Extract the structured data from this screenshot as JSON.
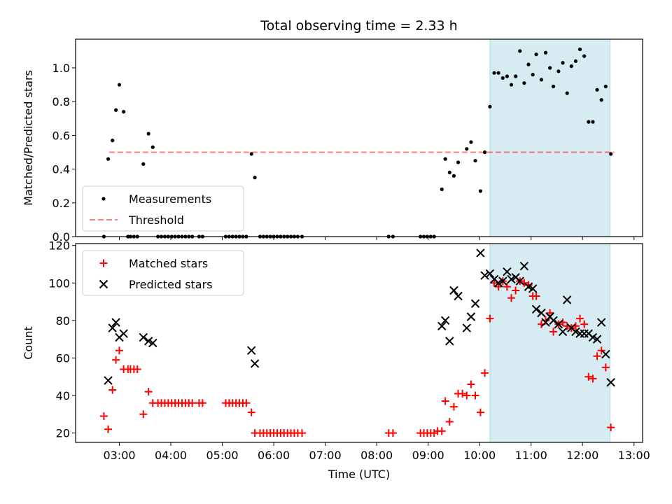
{
  "colors": {
    "band": "#add8e6",
    "threshold": "#ff0000",
    "matched": "#ff0000",
    "predicted": "#000000",
    "measurement": "#000000"
  },
  "chart_data": [
    {
      "type": "scatter",
      "title": "Total observing time = 2.33 h",
      "ylabel": "Matched/Predicted stars",
      "xlabel": "",
      "x_axis": "time",
      "xlim": [
        "02:09",
        "13:10"
      ],
      "ylim": [
        0,
        1.17
      ],
      "yticks": [
        0,
        0.2,
        0.4,
        0.6,
        0.8,
        1.0
      ],
      "ytick_labels": [
        "0.0",
        "0.2",
        "0.4",
        "0.6",
        "0.8",
        "1.0"
      ],
      "shaded_range": [
        "10:12",
        "12:32"
      ],
      "legend": {
        "position": "lower-left",
        "entries": [
          "Measurements",
          "Threshold"
        ]
      },
      "threshold": {
        "name": "Threshold",
        "y": 0.5,
        "x_range": [
          "02:48",
          "12:37"
        ],
        "style": "dashed"
      },
      "series": [
        {
          "name": "Measurements",
          "marker": "dot",
          "points": [
            [
              "02:42",
              0.0
            ],
            [
              "02:47",
              0.46
            ],
            [
              "02:52",
              0.57
            ],
            [
              "02:56",
              0.75
            ],
            [
              "03:00",
              0.9
            ],
            [
              "03:05",
              0.74
            ],
            [
              "03:10",
              0.0
            ],
            [
              "03:13",
              0.0
            ],
            [
              "03:17",
              0.0
            ],
            [
              "03:21",
              0.0
            ],
            [
              "03:28",
              0.43
            ],
            [
              "03:34",
              0.61
            ],
            [
              "03:39",
              0.53
            ],
            [
              "03:45",
              0.0
            ],
            [
              "03:49",
              0.0
            ],
            [
              "03:53",
              0.0
            ],
            [
              "03:57",
              0.0
            ],
            [
              "04:01",
              0.0
            ],
            [
              "04:05",
              0.0
            ],
            [
              "04:09",
              0.0
            ],
            [
              "04:13",
              0.0
            ],
            [
              "04:17",
              0.0
            ],
            [
              "04:21",
              0.0
            ],
            [
              "04:25",
              0.0
            ],
            [
              "04:33",
              0.0
            ],
            [
              "04:37",
              0.0
            ],
            [
              "05:04",
              0.0
            ],
            [
              "05:08",
              0.0
            ],
            [
              "05:12",
              0.0
            ],
            [
              "05:16",
              0.0
            ],
            [
              "05:20",
              0.0
            ],
            [
              "05:24",
              0.0
            ],
            [
              "05:28",
              0.0
            ],
            [
              "05:34",
              0.49
            ],
            [
              "05:38",
              0.35
            ],
            [
              "05:44",
              0.0
            ],
            [
              "05:48",
              0.0
            ],
            [
              "05:52",
              0.0
            ],
            [
              "05:56",
              0.0
            ],
            [
              "06:00",
              0.0
            ],
            [
              "06:04",
              0.0
            ],
            [
              "06:08",
              0.0
            ],
            [
              "06:12",
              0.0
            ],
            [
              "06:16",
              0.0
            ],
            [
              "06:20",
              0.0
            ],
            [
              "06:24",
              0.0
            ],
            [
              "06:28",
              0.0
            ],
            [
              "06:33",
              0.0
            ],
            [
              "08:14",
              0.0
            ],
            [
              "08:19",
              0.0
            ],
            [
              "08:51",
              0.0
            ],
            [
              "08:55",
              0.0
            ],
            [
              "08:59",
              0.0
            ],
            [
              "09:03",
              0.0
            ],
            [
              "09:07",
              0.0
            ],
            [
              "09:16",
              0.28
            ],
            [
              "09:20",
              0.46
            ],
            [
              "09:25",
              0.38
            ],
            [
              "09:30",
              0.36
            ],
            [
              "09:35",
              0.44
            ],
            [
              "09:45",
              0.52
            ],
            [
              "09:50",
              0.56
            ],
            [
              "09:55",
              0.45
            ],
            [
              "10:01",
              0.27
            ],
            [
              "10:06",
              0.5
            ],
            [
              "10:12",
              0.77
            ],
            [
              "10:17",
              0.97
            ],
            [
              "10:22",
              0.97
            ],
            [
              "10:27",
              0.94
            ],
            [
              "10:32",
              0.95
            ],
            [
              "10:37",
              0.9
            ],
            [
              "10:42",
              0.95
            ],
            [
              "10:47",
              1.1
            ],
            [
              "10:52",
              0.91
            ],
            [
              "10:57",
              1.02
            ],
            [
              "11:02",
              0.96
            ],
            [
              "11:06",
              1.08
            ],
            [
              "11:12",
              0.93
            ],
            [
              "11:17",
              1.09
            ],
            [
              "11:22",
              1.0
            ],
            [
              "11:26",
              0.89
            ],
            [
              "11:32",
              0.98
            ],
            [
              "11:37",
              1.03
            ],
            [
              "11:42",
              0.85
            ],
            [
              "11:47",
              1.01
            ],
            [
              "11:52",
              1.04
            ],
            [
              "11:57",
              1.11
            ],
            [
              "12:02",
              1.07
            ],
            [
              "12:07",
              0.68
            ],
            [
              "12:12",
              0.68
            ],
            [
              "12:17",
              0.87
            ],
            [
              "12:22",
              0.81
            ],
            [
              "12:27",
              0.89
            ],
            [
              "12:33",
              0.49
            ]
          ]
        }
      ]
    },
    {
      "type": "scatter",
      "title": "",
      "ylabel": "Count",
      "xlabel": "Time (UTC)",
      "x_axis": "time",
      "xlim": [
        "02:09",
        "13:10"
      ],
      "ylim": [
        15,
        121
      ],
      "yticks": [
        20,
        40,
        60,
        80,
        100,
        120
      ],
      "ytick_labels": [
        "20",
        "40",
        "60",
        "80",
        "100",
        "120"
      ],
      "xticks": [
        "03:00",
        "04:00",
        "05:00",
        "06:00",
        "07:00",
        "08:00",
        "09:00",
        "10:00",
        "11:00",
        "12:00",
        "13:00"
      ],
      "shaded_range": [
        "10:12",
        "12:32"
      ],
      "legend": {
        "position": "upper-left",
        "entries": [
          "Matched stars",
          "Predicted stars"
        ]
      },
      "series": [
        {
          "name": "Matched stars",
          "marker": "plus",
          "points": [
            [
              "02:42",
              29
            ],
            [
              "02:47",
              22
            ],
            [
              "02:52",
              43
            ],
            [
              "02:56",
              59
            ],
            [
              "03:00",
              64
            ],
            [
              "03:05",
              54
            ],
            [
              "03:10",
              54
            ],
            [
              "03:13",
              54
            ],
            [
              "03:17",
              54
            ],
            [
              "03:21",
              54
            ],
            [
              "03:28",
              30
            ],
            [
              "03:34",
              42
            ],
            [
              "03:39",
              36
            ],
            [
              "03:45",
              36
            ],
            [
              "03:49",
              36
            ],
            [
              "03:53",
              36
            ],
            [
              "03:57",
              36
            ],
            [
              "04:01",
              36
            ],
            [
              "04:05",
              36
            ],
            [
              "04:09",
              36
            ],
            [
              "04:13",
              36
            ],
            [
              "04:17",
              36
            ],
            [
              "04:21",
              36
            ],
            [
              "04:25",
              36
            ],
            [
              "04:33",
              36
            ],
            [
              "04:37",
              36
            ],
            [
              "05:04",
              36
            ],
            [
              "05:08",
              36
            ],
            [
              "05:12",
              36
            ],
            [
              "05:16",
              36
            ],
            [
              "05:20",
              36
            ],
            [
              "05:24",
              36
            ],
            [
              "05:28",
              36
            ],
            [
              "05:34",
              31
            ],
            [
              "05:38",
              20
            ],
            [
              "05:44",
              20
            ],
            [
              "05:48",
              20
            ],
            [
              "05:52",
              20
            ],
            [
              "05:56",
              20
            ],
            [
              "06:00",
              20
            ],
            [
              "06:04",
              20
            ],
            [
              "06:08",
              20
            ],
            [
              "06:12",
              20
            ],
            [
              "06:16",
              20
            ],
            [
              "06:20",
              20
            ],
            [
              "06:24",
              20
            ],
            [
              "06:28",
              20
            ],
            [
              "06:33",
              20
            ],
            [
              "08:14",
              20
            ],
            [
              "08:19",
              20
            ],
            [
              "08:51",
              20
            ],
            [
              "08:55",
              20
            ],
            [
              "08:59",
              20
            ],
            [
              "09:03",
              20
            ],
            [
              "09:07",
              20
            ],
            [
              "09:11",
              21
            ],
            [
              "09:16",
              21
            ],
            [
              "09:20",
              37
            ],
            [
              "09:25",
              26
            ],
            [
              "09:30",
              34
            ],
            [
              "09:35",
              41
            ],
            [
              "09:40",
              41
            ],
            [
              "09:45",
              40
            ],
            [
              "09:50",
              46
            ],
            [
              "09:55",
              40
            ],
            [
              "10:01",
              31
            ],
            [
              "10:06",
              52
            ],
            [
              "10:12",
              81
            ],
            [
              "10:17",
              100
            ],
            [
              "10:22",
              98
            ],
            [
              "10:27",
              101
            ],
            [
              "10:32",
              98
            ],
            [
              "10:37",
              92
            ],
            [
              "10:42",
              96
            ],
            [
              "10:47",
              101
            ],
            [
              "10:52",
              100
            ],
            [
              "10:57",
              99
            ],
            [
              "11:02",
              93
            ],
            [
              "11:06",
              93
            ],
            [
              "11:12",
              78
            ],
            [
              "11:17",
              80
            ],
            [
              "11:22",
              84
            ],
            [
              "11:26",
              74
            ],
            [
              "11:32",
              78
            ],
            [
              "11:37",
              79
            ],
            [
              "11:42",
              77
            ],
            [
              "11:47",
              76
            ],
            [
              "11:52",
              77
            ],
            [
              "11:57",
              81
            ],
            [
              "12:02",
              78
            ],
            [
              "12:07",
              50
            ],
            [
              "12:12",
              49
            ],
            [
              "12:17",
              61
            ],
            [
              "12:22",
              64
            ],
            [
              "12:27",
              55
            ],
            [
              "12:33",
              23
            ]
          ]
        },
        {
          "name": "Predicted stars",
          "marker": "x",
          "points": [
            [
              "02:47",
              48
            ],
            [
              "02:52",
              76
            ],
            [
              "02:56",
              79
            ],
            [
              "03:00",
              71
            ],
            [
              "03:05",
              73
            ],
            [
              "03:28",
              71
            ],
            [
              "03:34",
              69
            ],
            [
              "03:39",
              68
            ],
            [
              "05:34",
              64
            ],
            [
              "05:38",
              57
            ],
            [
              "09:16",
              77
            ],
            [
              "09:20",
              80
            ],
            [
              "09:25",
              69
            ],
            [
              "09:30",
              96
            ],
            [
              "09:35",
              93
            ],
            [
              "09:45",
              76
            ],
            [
              "09:50",
              82
            ],
            [
              "09:55",
              89
            ],
            [
              "10:01",
              116
            ],
            [
              "10:06",
              104
            ],
            [
              "10:12",
              105
            ],
            [
              "10:17",
              102
            ],
            [
              "10:22",
              100
            ],
            [
              "10:27",
              101
            ],
            [
              "10:32",
              106
            ],
            [
              "10:37",
              102
            ],
            [
              "10:42",
              103
            ],
            [
              "10:47",
              101
            ],
            [
              "10:52",
              109
            ],
            [
              "10:57",
              98
            ],
            [
              "11:02",
              97
            ],
            [
              "11:06",
              86
            ],
            [
              "11:12",
              84
            ],
            [
              "11:17",
              79
            ],
            [
              "11:22",
              82
            ],
            [
              "11:26",
              80
            ],
            [
              "11:32",
              78
            ],
            [
              "11:37",
              74
            ],
            [
              "11:42",
              91
            ],
            [
              "11:47",
              76
            ],
            [
              "11:52",
              74
            ],
            [
              "11:57",
              73
            ],
            [
              "12:02",
              73
            ],
            [
              "12:07",
              73
            ],
            [
              "12:12",
              71
            ],
            [
              "12:17",
              70
            ],
            [
              "12:22",
              79
            ],
            [
              "12:27",
              62
            ],
            [
              "12:33",
              47
            ]
          ]
        }
      ]
    }
  ]
}
